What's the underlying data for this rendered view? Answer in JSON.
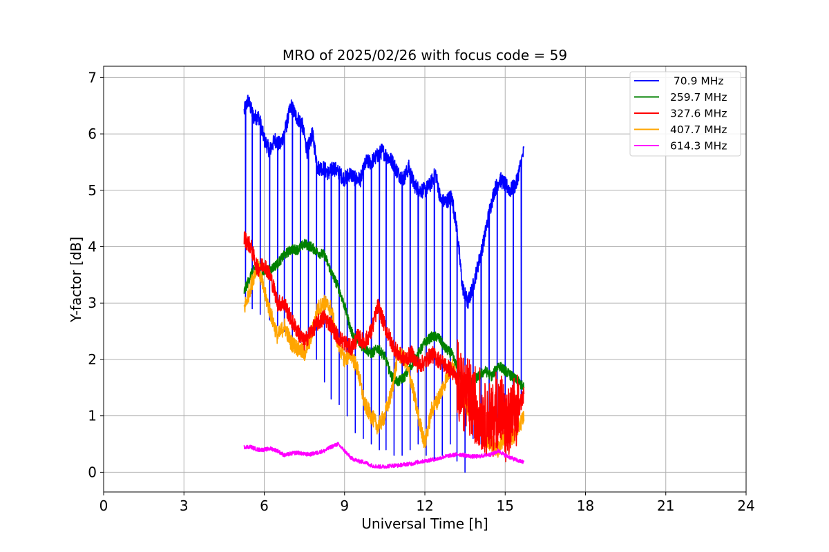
{
  "chart_data": {
    "type": "line",
    "title": "MRO of 2025/02/26 with focus code = 59",
    "xlabel": "Universal Time [h]",
    "ylabel": "Y-factor [dB]",
    "xlim": [
      0,
      24
    ],
    "ylim": [
      -0.35,
      7.2
    ],
    "xticks": [
      0,
      3,
      6,
      9,
      12,
      15,
      18,
      21,
      24
    ],
    "yticks": [
      0,
      1,
      2,
      3,
      4,
      5,
      6,
      7
    ],
    "grid": true,
    "legend_position": "upper right",
    "series": [
      {
        "name": " 70.9 MHz",
        "color": "#0000ff",
        "x": [
          5.25,
          5.4,
          5.6,
          5.8,
          6.0,
          6.2,
          6.4,
          6.6,
          6.8,
          7.0,
          7.2,
          7.4,
          7.6,
          7.8,
          8.0,
          8.2,
          8.4,
          8.6,
          8.8,
          9.0,
          9.2,
          9.4,
          9.6,
          9.8,
          10.0,
          10.2,
          10.4,
          10.6,
          10.8,
          11.0,
          11.2,
          11.4,
          11.6,
          11.8,
          12.0,
          12.2,
          12.4,
          12.6,
          12.8,
          13.0,
          13.2,
          13.4,
          13.6,
          13.8,
          14.0,
          14.2,
          14.4,
          14.6,
          14.8,
          15.0,
          15.2,
          15.4,
          15.6,
          15.7
        ],
        "y": [
          6.4,
          6.6,
          6.3,
          6.3,
          5.9,
          5.7,
          5.9,
          5.8,
          6.1,
          6.5,
          6.3,
          6.2,
          5.7,
          6.0,
          5.4,
          5.4,
          5.3,
          5.4,
          5.3,
          5.2,
          5.3,
          5.2,
          5.2,
          5.5,
          5.5,
          5.6,
          5.7,
          5.6,
          5.5,
          5.3,
          5.2,
          5.4,
          5.1,
          5.0,
          5.0,
          5.1,
          5.3,
          4.8,
          4.8,
          4.9,
          4.3,
          3.3,
          3.0,
          3.3,
          3.7,
          4.1,
          4.6,
          5.0,
          5.2,
          5.1,
          5.0,
          5.1,
          5.5,
          5.7
        ],
        "dips": [
          5.3,
          5.55,
          5.85,
          6.2,
          6.5,
          6.75,
          7.05,
          7.35,
          7.65,
          7.95,
          8.25,
          8.5,
          8.8,
          9.1,
          9.4,
          9.7,
          10.0,
          10.3,
          10.55,
          10.85,
          11.15,
          11.45,
          11.75,
          12.05,
          12.35,
          12.65,
          12.95,
          13.2,
          13.5,
          13.8,
          14.1,
          14.4,
          14.7,
          15.0,
          15.3,
          15.6
        ],
        "dip_values": [
          3.0,
          2.9,
          2.8,
          2.7,
          2.6,
          2.5,
          2.4,
          2.3,
          2.2,
          2.0,
          1.6,
          1.3,
          1.2,
          1.0,
          0.7,
          0.6,
          0.5,
          0.4,
          0.4,
          0.3,
          0.3,
          0.4,
          0.5,
          0.3,
          0.2,
          0.3,
          0.5,
          0.2,
          0.0,
          0.6,
          0.5,
          0.6,
          0.8,
          0.9,
          1.0,
          1.2
        ]
      },
      {
        "name": "259.7 MHz",
        "color": "#008000",
        "x": [
          5.25,
          5.5,
          5.75,
          6.0,
          6.25,
          6.5,
          6.75,
          7.0,
          7.25,
          7.5,
          7.75,
          8.0,
          8.25,
          8.5,
          8.75,
          9.0,
          9.25,
          9.5,
          9.75,
          10.0,
          10.25,
          10.5,
          10.75,
          11.0,
          11.25,
          11.5,
          11.75,
          12.0,
          12.25,
          12.5,
          12.75,
          13.0,
          13.25,
          13.5,
          13.75,
          14.0,
          14.25,
          14.5,
          14.75,
          15.0,
          15.25,
          15.5,
          15.7
        ],
        "y": [
          3.2,
          3.5,
          3.7,
          3.55,
          3.6,
          3.7,
          3.85,
          3.95,
          3.95,
          4.05,
          4.0,
          3.9,
          3.85,
          3.55,
          3.3,
          2.95,
          2.5,
          2.3,
          2.2,
          2.1,
          2.2,
          2.05,
          1.7,
          1.6,
          1.7,
          1.9,
          2.1,
          2.3,
          2.4,
          2.4,
          2.2,
          2.1,
          1.8,
          1.4,
          1.6,
          1.7,
          1.8,
          1.7,
          1.9,
          1.8,
          1.7,
          1.6,
          1.5
        ]
      },
      {
        "name": "327.6 MHz",
        "color": "#ff0000",
        "x": [
          5.25,
          5.5,
          5.75,
          6.0,
          6.25,
          6.5,
          6.75,
          7.0,
          7.25,
          7.5,
          7.75,
          8.0,
          8.25,
          8.5,
          8.75,
          9.0,
          9.25,
          9.5,
          9.75,
          10.0,
          10.25,
          10.5,
          10.75,
          11.0,
          11.25,
          11.5,
          11.75,
          12.0,
          12.25,
          12.5,
          12.75,
          13.0,
          13.25,
          13.5,
          13.75,
          14.0,
          14.25,
          14.5,
          14.75,
          15.0,
          15.25,
          15.5,
          15.7
        ],
        "y": [
          4.15,
          4.0,
          3.6,
          3.7,
          3.45,
          3.0,
          3.0,
          2.7,
          2.5,
          2.3,
          2.5,
          2.65,
          2.75,
          2.6,
          2.4,
          2.3,
          2.2,
          2.4,
          2.3,
          2.5,
          2.95,
          2.6,
          2.3,
          2.1,
          2.0,
          2.1,
          1.9,
          1.95,
          2.1,
          2.0,
          1.9,
          1.8,
          1.6,
          1.4,
          1.2,
          1.1,
          1.0,
          0.9,
          1.2,
          0.8,
          0.9,
          1.1,
          1.4
        ]
      },
      {
        "name": "407.7 MHz",
        "color": "#ffa500",
        "x": [
          5.25,
          5.5,
          5.75,
          6.0,
          6.25,
          6.5,
          6.75,
          7.0,
          7.25,
          7.5,
          7.75,
          8.0,
          8.25,
          8.5,
          8.75,
          9.0,
          9.25,
          9.5,
          9.75,
          10.0,
          10.25,
          10.5,
          10.75,
          11.0,
          11.25,
          11.5,
          11.75,
          12.0,
          12.25,
          12.5,
          12.75,
          13.0,
          13.25,
          13.5,
          13.75,
          14.0,
          14.25,
          14.5,
          14.75,
          15.0,
          15.25,
          15.5,
          15.7
        ],
        "y": [
          2.9,
          3.3,
          3.7,
          3.2,
          2.8,
          2.4,
          2.6,
          2.3,
          2.2,
          2.1,
          2.4,
          2.9,
          3.0,
          2.9,
          2.3,
          2.0,
          2.1,
          1.8,
          1.2,
          1.0,
          0.8,
          1.0,
          1.4,
          2.1,
          2.0,
          1.6,
          1.0,
          0.5,
          1.1,
          1.3,
          1.6,
          1.9,
          1.6,
          1.2,
          1.1,
          0.9,
          0.6,
          0.5,
          0.4,
          0.7,
          0.6,
          0.8,
          1.0
        ]
      },
      {
        "name": "614.3 MHz",
        "color": "#ff00ff",
        "x": [
          5.25,
          5.5,
          5.75,
          6.0,
          6.25,
          6.5,
          6.75,
          7.0,
          7.25,
          7.5,
          7.75,
          8.0,
          8.25,
          8.5,
          8.75,
          9.0,
          9.25,
          9.5,
          9.75,
          10.0,
          10.25,
          10.5,
          10.75,
          11.0,
          11.25,
          11.5,
          11.75,
          12.0,
          12.25,
          12.5,
          12.75,
          13.0,
          13.25,
          13.5,
          13.75,
          14.0,
          14.25,
          14.5,
          14.75,
          15.0,
          15.25,
          15.5,
          15.7
        ],
        "y": [
          0.45,
          0.45,
          0.4,
          0.4,
          0.42,
          0.38,
          0.3,
          0.33,
          0.35,
          0.32,
          0.32,
          0.35,
          0.38,
          0.45,
          0.5,
          0.38,
          0.25,
          0.2,
          0.18,
          0.12,
          0.1,
          0.1,
          0.12,
          0.12,
          0.14,
          0.15,
          0.18,
          0.2,
          0.22,
          0.24,
          0.28,
          0.3,
          0.32,
          0.3,
          0.28,
          0.28,
          0.3,
          0.32,
          0.38,
          0.3,
          0.25,
          0.2,
          0.18
        ]
      }
    ]
  }
}
